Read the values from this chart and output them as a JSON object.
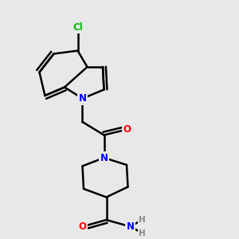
{
  "background_color": "#e8e8e8",
  "bond_color": "#000000",
  "bond_width": 1.5,
  "atom_colors": {
    "C": "#000000",
    "N": "#0000ff",
    "O": "#ff0000",
    "Cl": "#00bb00",
    "H": "#888888"
  },
  "title": ""
}
